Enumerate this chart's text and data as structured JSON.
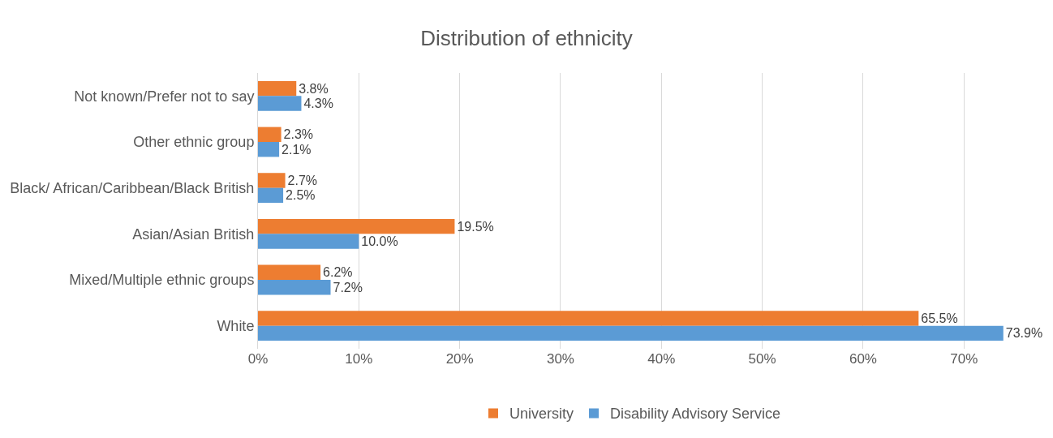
{
  "chart_data": {
    "type": "bar",
    "orientation": "horizontal",
    "title": "Distribution of ethnicity",
    "categories": [
      "Not known/Prefer not to say",
      "Other ethnic group",
      "Black/ African/Caribbean/Black British",
      "Asian/Asian British",
      "Mixed/Multiple ethnic groups",
      "White"
    ],
    "series": [
      {
        "name": "University",
        "color": "#ed7d31",
        "values": [
          3.8,
          2.3,
          2.7,
          19.5,
          6.2,
          65.5
        ],
        "value_labels": [
          "3.8%",
          "2.3%",
          "2.7%",
          "19.5%",
          "6.2%",
          "65.5%"
        ]
      },
      {
        "name": "Disability Advisory Service",
        "color": "#5b9bd5",
        "values": [
          4.3,
          2.1,
          2.5,
          10.0,
          7.2,
          73.9
        ],
        "value_labels": [
          "4.3%",
          "2.1%",
          "2.5%",
          "10.0%",
          "7.2%",
          "73.9%"
        ]
      }
    ],
    "xlim": [
      0,
      74
    ],
    "xticks": [
      {
        "value": 0,
        "label": "0%"
      },
      {
        "value": 10,
        "label": "10%"
      },
      {
        "value": 20,
        "label": "20%"
      },
      {
        "value": 30,
        "label": "30%"
      },
      {
        "value": 40,
        "label": "40%"
      },
      {
        "value": 50,
        "label": "50%"
      },
      {
        "value": 60,
        "label": "60%"
      },
      {
        "value": 70,
        "label": "70%"
      }
    ],
    "grid": "x",
    "legend": "bottom"
  }
}
